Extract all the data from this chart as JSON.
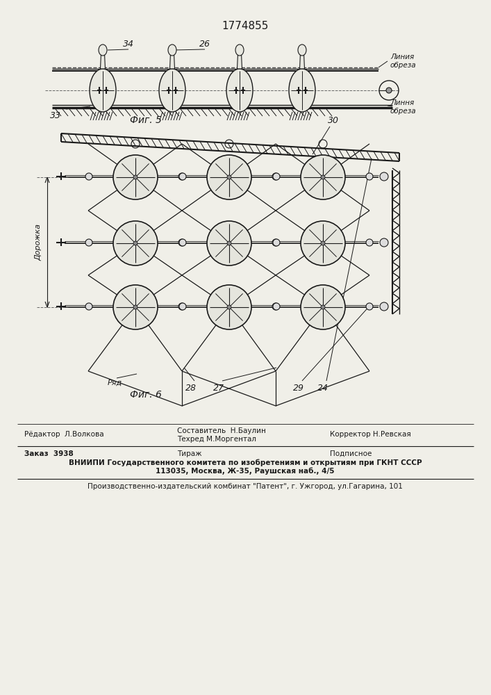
{
  "patent_number": "1774855",
  "background_color": "#f0efe8",
  "line_color": "#1a1a1a",
  "fig5_label": "Фиг. 5",
  "fig6_label": "Фиг. 6",
  "footer_line1_left": "Рёдактор  Л.Волкова",
  "footer_line1_mid1": "Составитель  Н.Баулин",
  "footer_line1_mid2": "Техред М.Моргентал",
  "footer_line1_right": "Корректор Н.Ревская",
  "footer_line2_left": "Заказ  3938",
  "footer_line2_mid": "Тираж",
  "footer_line2_right": "Подписное",
  "footer_line3": "ВНИИПИ Государственного комитета по изобретениям и открытиям при ГКНТ СССР",
  "footer_line4": "113035, Москва, Ж-35, Раушская наб., 4/5",
  "footer_line5": "Производственно-издательский комбинат \"Патент\", г. Ужгород, ул.Гагарина, 101"
}
